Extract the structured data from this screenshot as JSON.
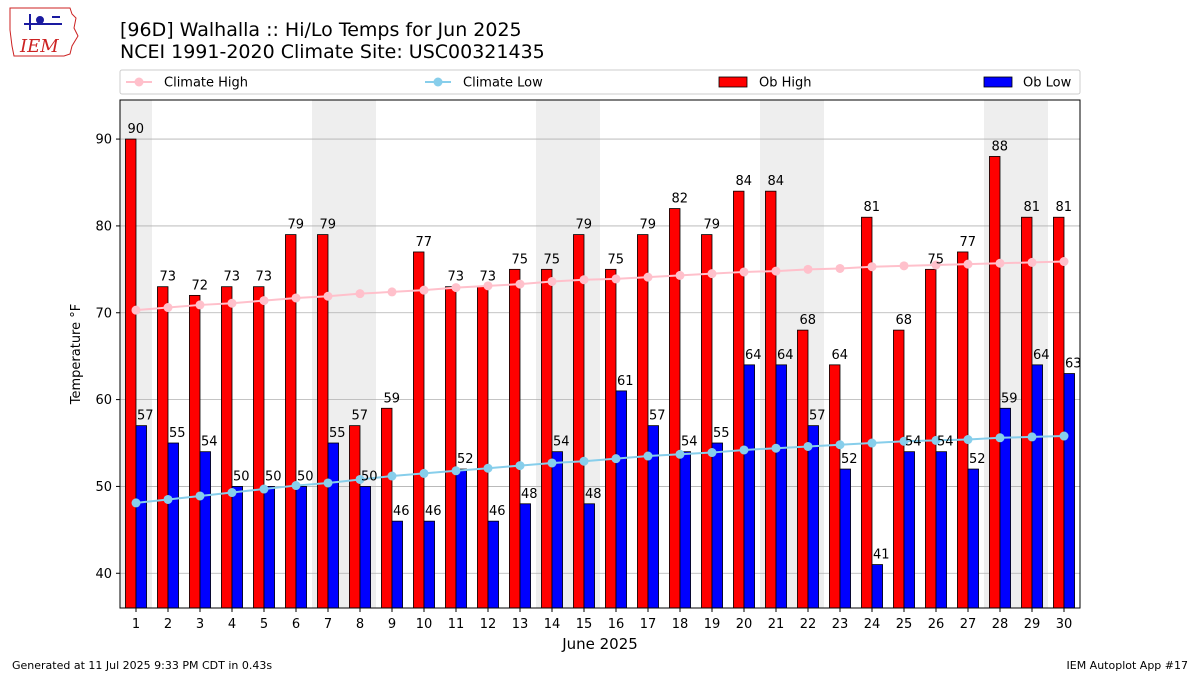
{
  "header": {
    "title_line1": "[96D] Walhalla :: Hi/Lo Temps for Jun 2025",
    "title_line2": "NCEI 1991-2020 Climate Site: USC00321435",
    "logo_text": "IEM"
  },
  "footer": {
    "generated": "Generated at 11 Jul 2025 9:33 PM CDT in 0.43s",
    "app": "IEM Autoplot App #17"
  },
  "colors": {
    "ob_high": "#ff0000",
    "ob_low": "#0000ff",
    "climate_high": "#ffc0cb",
    "climate_low": "#87ceeb",
    "weekend_shade": "#eeeeee",
    "grid": "#b0b0b0"
  },
  "chart_data": {
    "type": "bar",
    "xlabel": "June 2025",
    "ylabel": "Temperature °F",
    "ylim": [
      36,
      94.5
    ],
    "yticks": [
      40,
      50,
      60,
      70,
      80,
      90
    ],
    "grid": "horizontal",
    "legend_position": "top",
    "categories": [
      "1",
      "2",
      "3",
      "4",
      "5",
      "6",
      "7",
      "8",
      "9",
      "10",
      "11",
      "12",
      "13",
      "14",
      "15",
      "16",
      "17",
      "18",
      "19",
      "20",
      "21",
      "22",
      "23",
      "24",
      "25",
      "26",
      "27",
      "28",
      "29",
      "30"
    ],
    "shaded_day_ranges": [
      [
        1,
        1
      ],
      [
        7,
        8
      ],
      [
        14,
        15
      ],
      [
        21,
        22
      ],
      [
        28,
        29
      ]
    ],
    "series": [
      {
        "name": "Ob High",
        "kind": "bar",
        "values": [
          90,
          73,
          72,
          73,
          73,
          79,
          79,
          57,
          59,
          77,
          73,
          73,
          75,
          75,
          79,
          75,
          79,
          82,
          79,
          84,
          84,
          68,
          64,
          81,
          68,
          75,
          77,
          88,
          81,
          81
        ]
      },
      {
        "name": "Ob Low",
        "kind": "bar",
        "values": [
          57,
          55,
          54,
          50,
          50,
          50,
          55,
          50,
          46,
          46,
          52,
          46,
          48,
          54,
          48,
          61,
          57,
          54,
          55,
          64,
          64,
          57,
          52,
          41,
          54,
          54,
          52,
          59,
          64,
          63
        ]
      },
      {
        "name": "Climate High",
        "kind": "line",
        "values": [
          70.3,
          70.6,
          70.9,
          71.1,
          71.4,
          71.7,
          71.9,
          72.2,
          72.4,
          72.6,
          72.9,
          73.1,
          73.3,
          73.6,
          73.8,
          73.9,
          74.1,
          74.3,
          74.5,
          74.7,
          74.8,
          75.0,
          75.1,
          75.3,
          75.4,
          75.5,
          75.6,
          75.7,
          75.8,
          75.9
        ]
      },
      {
        "name": "Climate Low",
        "kind": "line",
        "values": [
          48.1,
          48.5,
          48.9,
          49.3,
          49.7,
          50.1,
          50.4,
          50.8,
          51.2,
          51.5,
          51.8,
          52.1,
          52.4,
          52.7,
          52.9,
          53.2,
          53.5,
          53.7,
          53.9,
          54.2,
          54.4,
          54.6,
          54.8,
          55.0,
          55.2,
          55.3,
          55.4,
          55.6,
          55.7,
          55.8
        ]
      }
    ]
  }
}
